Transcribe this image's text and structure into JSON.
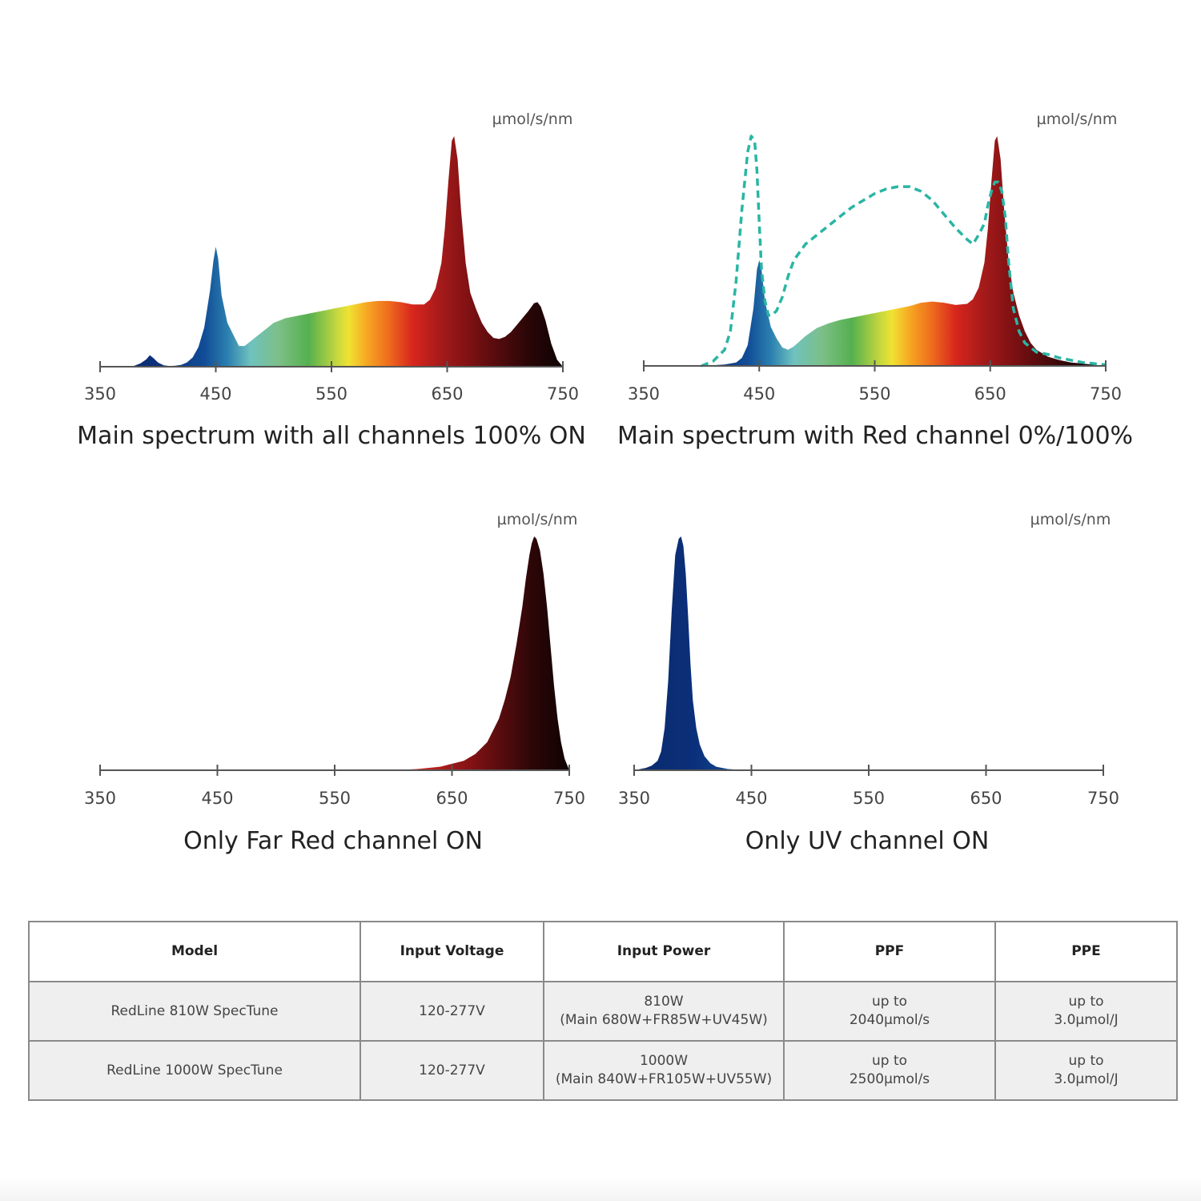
{
  "chart_data": [
    {
      "type": "area",
      "title": "Main spectrum with all channels 100% ON",
      "ylabel": "µmol/s/nm",
      "xlabel": "",
      "xlim": [
        350,
        750
      ],
      "xticks": [
        350,
        450,
        550,
        650,
        750
      ],
      "fill": "wavelength-color",
      "series": [
        {
          "x": [
            375,
            380,
            385,
            390,
            393,
            396,
            400,
            405,
            410,
            415,
            420,
            425,
            430,
            435,
            440,
            445,
            448,
            450,
            452,
            455,
            460,
            465,
            470,
            475,
            480,
            490,
            500,
            510,
            520,
            530,
            540,
            550,
            560,
            570,
            580,
            590,
            600,
            610,
            620,
            630,
            635,
            640,
            645,
            648,
            651,
            654,
            656,
            659,
            662,
            666,
            670,
            675,
            680,
            685,
            690,
            695,
            700,
            705,
            710,
            715,
            720,
            725,
            728,
            731,
            735,
            740,
            745,
            750
          ],
          "y": [
            0,
            0.5,
            1.5,
            3.2,
            5,
            3.8,
            1.8,
            0.6,
            0.3,
            0.4,
            0.8,
            1.8,
            4,
            8.5,
            17,
            33,
            46,
            52,
            47,
            31,
            19,
            14,
            9,
            9,
            11,
            15,
            19,
            21,
            22,
            23,
            24,
            25,
            26,
            27,
            28,
            28.5,
            28.5,
            28,
            27,
            27,
            29,
            34,
            45,
            60,
            80,
            98,
            100,
            90,
            68,
            45,
            32,
            25,
            19,
            15,
            12.5,
            12,
            13,
            15,
            18,
            21,
            24,
            27.5,
            28,
            26,
            20,
            10,
            3,
            0
          ]
        }
      ]
    },
    {
      "type": "area",
      "title": "Main spectrum with Red channel 0%/100%",
      "ylabel": "µmol/s/nm",
      "xlabel": "",
      "xlim": [
        350,
        750
      ],
      "xticks": [
        350,
        450,
        550,
        650,
        750
      ],
      "fill": "wavelength-color",
      "series": [
        {
          "name": "",
          "x": [
            400,
            410,
            420,
            430,
            435,
            440,
            445,
            448,
            450,
            452,
            455,
            460,
            465,
            470,
            475,
            480,
            490,
            500,
            510,
            520,
            530,
            540,
            550,
            560,
            570,
            580,
            590,
            600,
            610,
            620,
            630,
            635,
            640,
            645,
            648,
            651,
            654,
            656,
            659,
            662,
            666,
            670,
            675,
            680,
            685,
            690,
            700,
            710,
            720,
            730,
            740,
            750
          ],
          "y": [
            0,
            0.3,
            0.6,
            1.5,
            3.5,
            9,
            25,
            42,
            46,
            42,
            28,
            17,
            12,
            8,
            7,
            8.5,
            13,
            16.5,
            18.5,
            20,
            21,
            22,
            23,
            24,
            25,
            26,
            27.5,
            28,
            27.5,
            26.5,
            27,
            29,
            34,
            45,
            60,
            80,
            98,
            100,
            90,
            68,
            45,
            32,
            22,
            15,
            10,
            7,
            4,
            2.5,
            1.5,
            1,
            0.5,
            0
          ]
        },
        {
          "name": "",
          "style": "dashed",
          "color": "#2ab5a5",
          "x": [
            400,
            410,
            420,
            425,
            430,
            435,
            440,
            443,
            446,
            448,
            450,
            452,
            455,
            458,
            461,
            465,
            470,
            475,
            480,
            490,
            500,
            510,
            520,
            530,
            540,
            550,
            560,
            570,
            580,
            590,
            600,
            610,
            620,
            630,
            635,
            640,
            645,
            648,
            651,
            654,
            657,
            660,
            663,
            666,
            670,
            675,
            680,
            690,
            700,
            710,
            720,
            730,
            740,
            750
          ],
          "y": [
            0,
            2,
            7,
            15,
            37,
            68,
            93,
            100,
            98,
            85,
            62,
            42,
            28,
            22,
            22,
            24,
            30,
            39,
            46,
            53,
            57,
            61,
            65,
            69,
            72,
            75,
            77,
            78,
            78,
            76,
            72,
            66,
            60,
            55,
            53,
            57,
            62,
            70,
            76,
            80,
            80,
            76,
            65,
            45,
            25,
            15,
            10,
            6,
            5,
            3.5,
            2.5,
            1.5,
            1,
            0.5
          ]
        }
      ]
    },
    {
      "type": "area",
      "title": "Only Far Red channel ON",
      "ylabel": "µmol/s/nm",
      "xlabel": "",
      "xlim": [
        350,
        750
      ],
      "xticks": [
        350,
        450,
        550,
        650,
        750
      ],
      "fill": "wavelength-color",
      "series": [
        {
          "x": [
            600,
            620,
            640,
            660,
            670,
            680,
            690,
            695,
            700,
            705,
            710,
            713,
            716,
            718,
            720,
            722,
            725,
            728,
            731,
            734,
            737,
            740,
            743,
            746,
            750
          ],
          "y": [
            0,
            0.5,
            1.5,
            4,
            7,
            12,
            22,
            30,
            40,
            54,
            70,
            82,
            92,
            97,
            100,
            99,
            94,
            84,
            70,
            53,
            36,
            22,
            12,
            5,
            0
          ]
        }
      ]
    },
    {
      "type": "area",
      "title": "Only UV channel ON",
      "ylabel": "µmol/s/nm",
      "xlabel": "",
      "xlim": [
        350,
        750
      ],
      "xticks": [
        350,
        450,
        550,
        650,
        750
      ],
      "fill": "wavelength-color",
      "series": [
        {
          "x": [
            350,
            360,
            365,
            370,
            373,
            376,
            379,
            382,
            385,
            388,
            390,
            392,
            394,
            396,
            398,
            400,
            403,
            406,
            410,
            415,
            420,
            430,
            440,
            450
          ],
          "y": [
            0,
            1,
            2,
            4,
            8,
            18,
            38,
            68,
            92,
            99,
            100,
            96,
            84,
            66,
            46,
            30,
            18,
            11,
            6,
            3,
            1.5,
            0.5,
            0.2,
            0
          ]
        }
      ]
    }
  ],
  "table": {
    "headers": [
      "Model",
      "Input Voltage",
      "Input Power",
      "PPF",
      "PPE"
    ],
    "rows": [
      {
        "model": "RedLine 810W SpecTune",
        "voltage": "120-277V",
        "power": [
          "810W",
          "(Main 680W+FR85W+UV45W)"
        ],
        "ppf": [
          "up to",
          "2040µmol/s"
        ],
        "ppe": [
          "up to",
          "3.0µmol/J"
        ]
      },
      {
        "model": "RedLine 1000W SpecTune",
        "voltage": "120-277V",
        "power": [
          "1000W",
          "(Main 840W+FR105W+UV55W)"
        ],
        "ppf": [
          "up to",
          "2500µmol/s"
        ],
        "ppe": [
          "up to",
          "3.0µmol/J"
        ]
      }
    ]
  }
}
